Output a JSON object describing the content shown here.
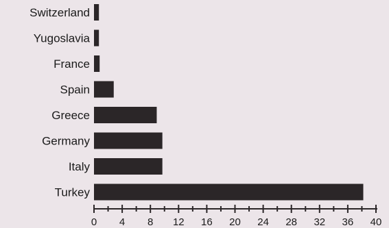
{
  "chart_data": {
    "type": "bar",
    "orientation": "horizontal",
    "categories": [
      "Switzerland",
      "Yugoslavia",
      "France",
      "Spain",
      "Greece",
      "Germany",
      "Italy",
      "Turkey"
    ],
    "values": [
      0.7,
      0.7,
      0.8,
      2.8,
      8.9,
      9.7,
      9.7,
      38.2
    ],
    "xlim": [
      0,
      40
    ],
    "xticks": [
      "0",
      "4",
      "8",
      "12",
      "16",
      "20",
      "24",
      "28",
      "32",
      "36",
      "40"
    ],
    "title": "",
    "xlabel": "",
    "ylabel": "",
    "grid": false,
    "colors": {
      "bar": "#2b2628",
      "background": "#ece5e9"
    }
  }
}
